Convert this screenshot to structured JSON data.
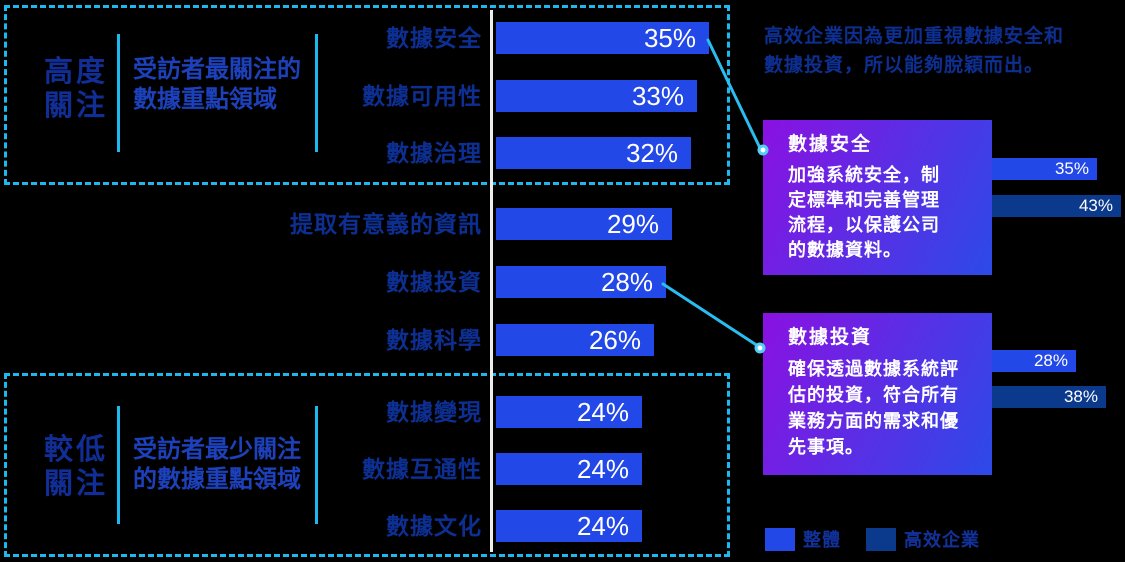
{
  "colors": {
    "background": "#000000",
    "bar_blue": "#2348e8",
    "bar_navy": "#0b3a8c",
    "cyan_accent": "#1cb8ee",
    "navy_text": "#0d2f92",
    "blue_text": "#1c41bb",
    "axis_line": "#ededed",
    "callout_gradient_start": "#8a11e2",
    "callout_gradient_end": "#2c4ae8",
    "white": "#ffffff"
  },
  "group_boxes": {
    "high": {
      "title_lines": [
        "高度",
        "關注"
      ],
      "description_lines": [
        "受訪者最關注的",
        "數據重點領域"
      ]
    },
    "low": {
      "title_lines": [
        "較低",
        "關注"
      ],
      "description_lines": [
        "受訪者最少關注",
        "的數據重點領域"
      ]
    }
  },
  "chart_data": {
    "type": "bar",
    "orientation": "horizontal",
    "unit": "%",
    "categories": [
      "數據安全",
      "數據可用性",
      "數據治理",
      "提取有意義的資訊",
      "數據投資",
      "數據科學",
      "數據變現",
      "數據互通性",
      "數據文化"
    ],
    "values": [
      35,
      33,
      32,
      29,
      28,
      26,
      24,
      24,
      24
    ],
    "value_labels": [
      "35%",
      "33%",
      "32%",
      "29%",
      "28%",
      "26%",
      "24%",
      "24%",
      "24%"
    ],
    "group_of_rows": [
      "high",
      "high",
      "high",
      "none",
      "none",
      "none",
      "low",
      "low",
      "low"
    ],
    "comparisons": [
      {
        "category": "數據安全",
        "series": [
          {
            "name": "整體",
            "value": 35
          },
          {
            "name": "高效企業",
            "value": 43
          }
        ]
      },
      {
        "category": "數據投資",
        "series": [
          {
            "name": "整體",
            "value": 28
          },
          {
            "name": "高效企業",
            "value": 38
          }
        ]
      }
    ]
  },
  "annotation": {
    "lines": [
      "高效企業因為更加重視數據安全和",
      "數據投資，所以能夠脫穎而出。"
    ]
  },
  "callouts": [
    {
      "title": "數據安全",
      "body_lines": [
        "加強系統安全，制",
        "定標準和完善管理",
        "流程，以保護公司",
        "的數據資料。"
      ],
      "bars": [
        {
          "series": "整體",
          "value": 35,
          "label": "35%"
        },
        {
          "series": "高效企業",
          "value": 43,
          "label": "43%"
        }
      ]
    },
    {
      "title": "數據投資",
      "body_lines": [
        "確保透過數據系統評",
        "估的投資，符合所有",
        "業務方面的需求和優",
        "先事項。"
      ],
      "bars": [
        {
          "series": "整體",
          "value": 28,
          "label": "28%"
        },
        {
          "series": "高效企業",
          "value": 38,
          "label": "38%"
        }
      ]
    }
  ],
  "legend": {
    "items": [
      {
        "label": "整體",
        "color": "#2348e8"
      },
      {
        "label": "高效企業",
        "color": "#0b3a8c"
      }
    ]
  }
}
